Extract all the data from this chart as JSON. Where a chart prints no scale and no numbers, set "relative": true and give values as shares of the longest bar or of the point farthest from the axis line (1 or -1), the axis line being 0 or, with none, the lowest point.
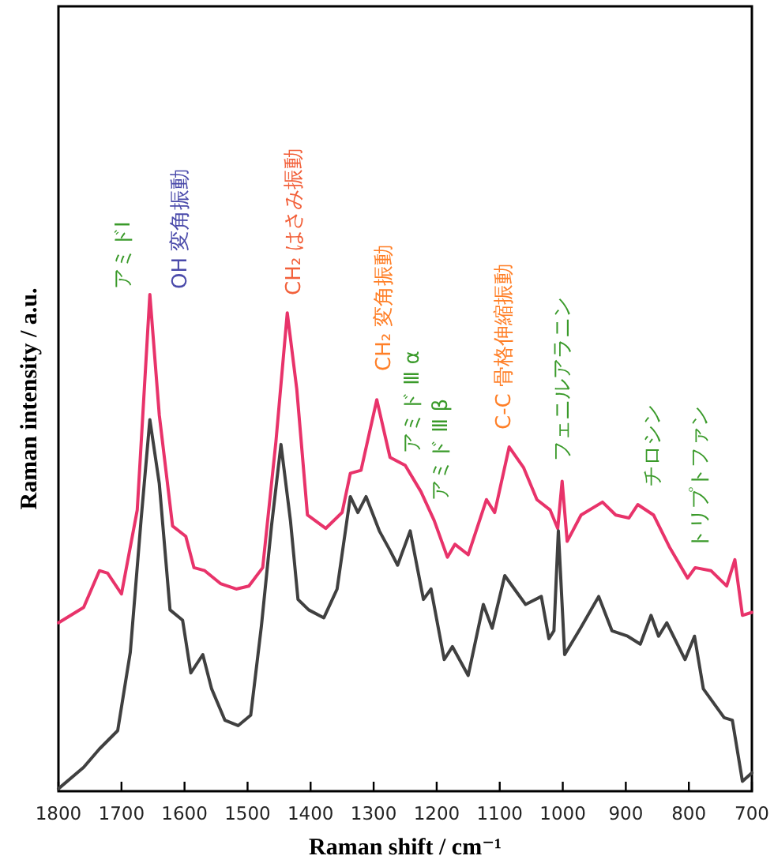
{
  "chart_data": {
    "type": "line",
    "relative": true,
    "tick_labels": "x",
    "xlabel": "Raman shift / cm⁻¹",
    "ylabel": "Raman intensity / a.u.",
    "xlim": [
      1800,
      700
    ],
    "xticks": [
      1800,
      1700,
      1600,
      1500,
      1400,
      1300,
      1200,
      1100,
      1000,
      900,
      800,
      700
    ],
    "series": [
      {
        "color": "#e8336a",
        "x": [
          1800,
          1760,
          1735,
          1722,
          1700,
          1675,
          1655,
          1640,
          1619,
          1598,
          1585,
          1568,
          1543,
          1518,
          1498,
          1476,
          1455,
          1437,
          1422,
          1405,
          1376,
          1350,
          1337,
          1320,
          1295,
          1274,
          1250,
          1225,
          1204,
          1183,
          1171,
          1150,
          1121,
          1108,
          1085,
          1062,
          1041,
          1020,
          1008,
          1001,
          993,
          971,
          937,
          916,
          895,
          881,
          856,
          831,
          802,
          790,
          765,
          740,
          727,
          715,
          700
        ],
        "values": [
          0.339,
          0.37,
          0.444,
          0.439,
          0.397,
          0.566,
          1.0,
          0.757,
          0.534,
          0.513,
          0.45,
          0.444,
          0.418,
          0.407,
          0.413,
          0.45,
          0.704,
          0.963,
          0.81,
          0.556,
          0.529,
          0.561,
          0.64,
          0.646,
          0.788,
          0.672,
          0.656,
          0.603,
          0.545,
          0.471,
          0.497,
          0.476,
          0.587,
          0.561,
          0.693,
          0.651,
          0.587,
          0.566,
          0.529,
          0.624,
          0.503,
          0.556,
          0.582,
          0.556,
          0.55,
          0.577,
          0.556,
          0.492,
          0.429,
          0.45,
          0.444,
          0.413,
          0.466,
          0.354,
          0.36
        ]
      },
      {
        "color": "#404040",
        "x": [
          1800,
          1760,
          1735,
          1706,
          1686,
          1669,
          1655,
          1640,
          1623,
          1603,
          1590,
          1571,
          1557,
          1536,
          1515,
          1495,
          1478,
          1462,
          1447,
          1432,
          1420,
          1403,
          1379,
          1358,
          1337,
          1325,
          1312,
          1291,
          1275,
          1262,
          1242,
          1221,
          1209,
          1188,
          1175,
          1150,
          1126,
          1112,
          1092,
          1071,
          1059,
          1034,
          1022,
          1014,
          1007,
          997,
          972,
          943,
          922,
          897,
          877,
          860,
          848,
          835,
          806,
          791,
          777,
          744,
          731,
          715,
          700
        ],
        "values": [
          0.005,
          0.048,
          0.085,
          0.122,
          0.28,
          0.545,
          0.748,
          0.619,
          0.365,
          0.344,
          0.238,
          0.275,
          0.206,
          0.143,
          0.132,
          0.153,
          0.333,
          0.534,
          0.698,
          0.545,
          0.386,
          0.365,
          0.349,
          0.407,
          0.593,
          0.561,
          0.593,
          0.524,
          0.487,
          0.455,
          0.524,
          0.386,
          0.407,
          0.265,
          0.291,
          0.233,
          0.376,
          0.328,
          0.434,
          0.397,
          0.376,
          0.392,
          0.307,
          0.323,
          0.524,
          0.275,
          0.328,
          0.392,
          0.323,
          0.312,
          0.296,
          0.354,
          0.312,
          0.339,
          0.265,
          0.312,
          0.206,
          0.148,
          0.143,
          0.02,
          0.037
        ]
      }
    ],
    "annotations": [
      "アミドⅠ",
      "OH 変角振動",
      "CH₂ はさみ振動",
      "CH₂ 変角振動",
      "アミド Ⅲ α",
      "アミド Ⅲ β",
      "C-C 骨格伸縮振動",
      "フェニルアラニン",
      "チロシン",
      "トリプトファン"
    ]
  }
}
